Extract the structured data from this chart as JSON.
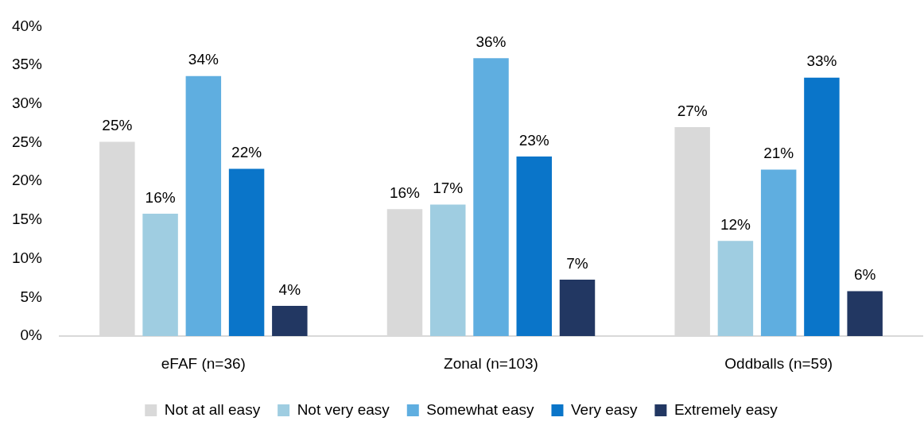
{
  "chart_data": {
    "type": "bar",
    "categories": [
      "eFAF (n=36)",
      "Zonal (n=103)",
      "Oddballs (n=59)"
    ],
    "series": [
      {
        "name": "Not at all easy",
        "color": "#d9d9d9",
        "values": [
          25.1,
          16.4,
          27.0
        ],
        "value_labels": [
          "25%",
          "16%",
          "27%"
        ]
      },
      {
        "name": "Not very easy",
        "color": "#9fcde1",
        "values": [
          15.8,
          17.0,
          12.3
        ],
        "value_labels": [
          "16%",
          "17%",
          "12%"
        ]
      },
      {
        "name": "Somewhat easy",
        "color": "#5faee0",
        "values": [
          33.6,
          35.9,
          21.5
        ],
        "value_labels": [
          "34%",
          "36%",
          "21%"
        ]
      },
      {
        "name": "Very easy",
        "color": "#0a75c9",
        "values": [
          21.6,
          23.2,
          33.4
        ],
        "value_labels": [
          "22%",
          "23%",
          "33%"
        ]
      },
      {
        "name": "Extremely easy",
        "color": "#223762",
        "values": [
          3.9,
          7.3,
          5.8
        ],
        "value_labels": [
          "4%",
          "7%",
          "6%"
        ]
      }
    ],
    "ylim": [
      0,
      40
    ],
    "yticks": [
      {
        "value": 0,
        "label": "0%"
      },
      {
        "value": 5,
        "label": "5%"
      },
      {
        "value": 10,
        "label": "10%"
      },
      {
        "value": 15,
        "label": "15%"
      },
      {
        "value": 20,
        "label": "20%"
      },
      {
        "value": 25,
        "label": "25%"
      },
      {
        "value": 30,
        "label": "30%"
      },
      {
        "value": 35,
        "label": "35%"
      },
      {
        "value": 40,
        "label": "40%"
      }
    ],
    "grid": false,
    "legend": "bottom"
  }
}
